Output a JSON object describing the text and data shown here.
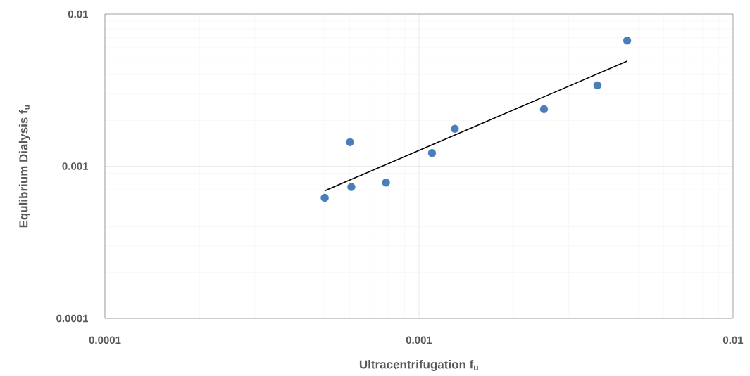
{
  "chart_data": {
    "type": "scatter",
    "xlabel": "Ultracentrifugation f$_{u}$",
    "ylabel": "Equlibrium Dialysis f$_{u}$",
    "log": "xy",
    "xlim": [
      0.0001,
      0.01
    ],
    "ylim": [
      0.0001,
      0.01
    ],
    "xticks": [
      0.0001,
      0.001,
      0.01
    ],
    "yticks": [
      0.0001,
      0.001,
      0.01
    ],
    "grid": true,
    "series": [
      {
        "marker": "circle",
        "color": "#4a7ebb",
        "x": [
          0.000501,
          0.000603,
          0.000609,
          0.000785,
          0.0011,
          0.0013,
          0.0025,
          0.0037,
          0.0046
        ],
        "values": [
          0.00062,
          0.00144,
          0.00073,
          0.00078,
          0.00122,
          0.00176,
          0.00237,
          0.0034,
          0.0067
        ]
      },
      {
        "type": "line",
        "marker": "none",
        "color": "#000000",
        "x": [
          0.000501,
          0.0046
        ],
        "values": [
          0.00069,
          0.0049
        ]
      }
    ]
  }
}
